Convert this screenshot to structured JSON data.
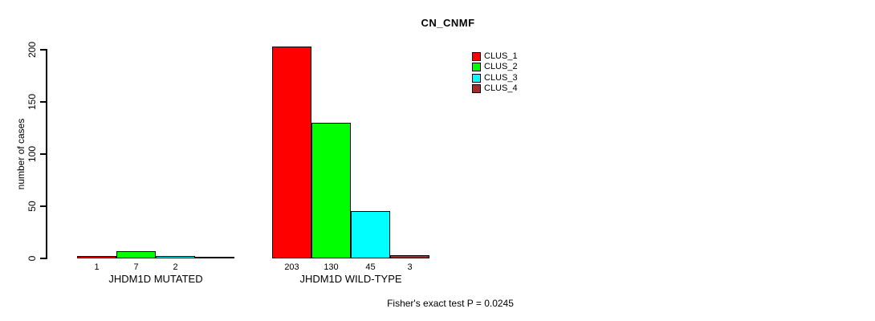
{
  "chart_data": {
    "type": "bar",
    "title": "CN_CNMF",
    "ylabel": "number of cases",
    "xlabel": "",
    "ylim": [
      0,
      200
    ],
    "yticks": [
      0,
      50,
      100,
      150,
      200
    ],
    "grid": false,
    "legend_position": "top-right-inside",
    "categories": [
      "JHDM1D MUTATED",
      "JHDM1D WILD-TYPE"
    ],
    "series": [
      {
        "name": "CLUS_1",
        "color": "#ff0000",
        "values": [
          1,
          203
        ]
      },
      {
        "name": "CLUS_2",
        "color": "#00ff00",
        "values": [
          7,
          130
        ]
      },
      {
        "name": "CLUS_3",
        "color": "#00ffff",
        "values": [
          2,
          45
        ]
      },
      {
        "name": "CLUS_4",
        "color": "#a52a2a",
        "values": [
          0,
          3
        ]
      }
    ],
    "bar_value_labels": [
      [
        "1",
        "7",
        "2",
        ""
      ],
      [
        "203",
        "130",
        "45",
        "3"
      ]
    ],
    "footnote": "Fisher's exact test P = 0.0245"
  }
}
